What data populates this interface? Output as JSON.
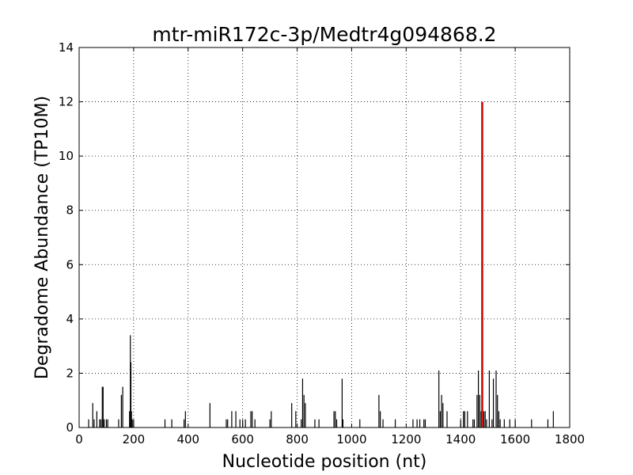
{
  "chart_data": {
    "type": "bar",
    "title": "mtr-miR172c-3p/Medtr4g094868.2",
    "xlabel": "Nucleotide position (nt)",
    "ylabel": "Degradome Abundance (TP10M)",
    "xlim": [
      0,
      1800
    ],
    "ylim": [
      0,
      14
    ],
    "xticks": [
      0,
      200,
      400,
      600,
      800,
      1000,
      1200,
      1400,
      1600,
      1800
    ],
    "yticks": [
      0,
      2,
      4,
      6,
      8,
      10,
      12,
      14
    ],
    "grid": true,
    "bar_color": "#000000",
    "highlight_color": "#cc0000",
    "x": [
      35,
      50,
      55,
      65,
      75,
      80,
      85,
      88,
      92,
      100,
      105,
      145,
      155,
      160,
      185,
      188,
      190,
      192,
      195,
      200,
      315,
      340,
      385,
      390,
      480,
      540,
      545,
      560,
      575,
      590,
      600,
      610,
      630,
      635,
      645,
      700,
      705,
      780,
      795,
      815,
      820,
      825,
      830,
      865,
      880,
      935,
      940,
      945,
      965,
      968,
      1030,
      1100,
      1105,
      1115,
      1160,
      1225,
      1240,
      1250,
      1265,
      1270,
      1320,
      1325,
      1330,
      1335,
      1350,
      1400,
      1410,
      1415,
      1425,
      1445,
      1450,
      1460,
      1465,
      1470,
      1475,
      1485,
      1490,
      1495,
      1505,
      1515,
      1520,
      1530,
      1535,
      1540,
      1545,
      1560,
      1580,
      1600,
      1660,
      1720,
      1740
    ],
    "values": [
      0.3,
      0.9,
      0.3,
      0.6,
      0.3,
      0.3,
      1.5,
      1.5,
      0.3,
      0.3,
      0.3,
      0.3,
      1.2,
      1.5,
      0.6,
      3.4,
      2.4,
      0.6,
      0.3,
      0.3,
      0.3,
      0.3,
      0.3,
      0.6,
      0.9,
      0.3,
      0.3,
      0.6,
      0.6,
      0.3,
      0.3,
      0.3,
      0.6,
      0.6,
      0.3,
      0.3,
      0.6,
      0.9,
      0.6,
      0.3,
      1.8,
      1.2,
      0.9,
      0.3,
      0.3,
      0.6,
      0.6,
      0.3,
      1.8,
      0.3,
      0.3,
      1.2,
      0.6,
      0.3,
      0.3,
      0.3,
      0.3,
      0.3,
      0.3,
      0.3,
      2.1,
      0.6,
      1.2,
      0.9,
      0.6,
      0.3,
      0.6,
      0.6,
      0.6,
      0.3,
      0.3,
      1.2,
      2.1,
      1.2,
      0.6,
      0.6,
      0.6,
      0.3,
      2.1,
      0.3,
      1.8,
      2.1,
      1.2,
      0.6,
      0.3,
      0.3,
      0.3,
      0.3,
      0.3,
      0.3,
      0.6
    ],
    "highlight": {
      "x": 1479,
      "value": 12.0
    }
  }
}
